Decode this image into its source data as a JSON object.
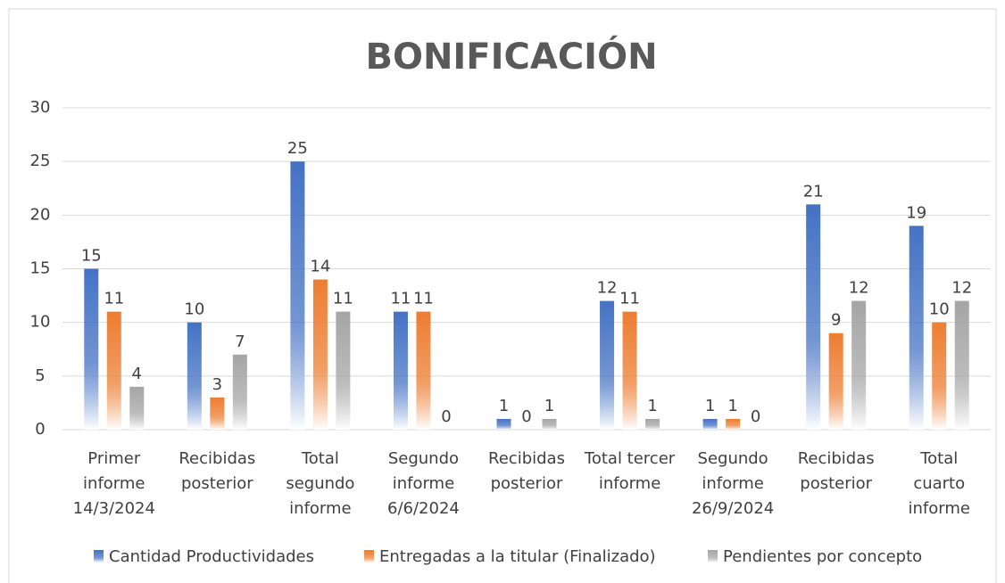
{
  "chart_data": {
    "type": "bar",
    "title": "BONIFICACIÓN",
    "categories": [
      "Primer\ninforme\n14/3/2024",
      "Recibidas\nposterior",
      "Total\nsegundo\ninforme",
      "Segundo\ninforme\n6/6/2024",
      "Recibidas\nposterior",
      "Total tercer\ninforme",
      "Segundo\ninforme\n26/9/2024",
      "Recibidas\nposterior",
      "Total\ncuarto\ninforme"
    ],
    "series": [
      {
        "name": "Cantidad Productividades",
        "color": "#4472c4",
        "values": [
          15,
          10,
          25,
          11,
          1,
          12,
          1,
          21,
          19
        ]
      },
      {
        "name": "Entregadas a la titular (Finalizado)",
        "color": "#ed7d31",
        "values": [
          11,
          3,
          14,
          11,
          0,
          11,
          1,
          9,
          10
        ]
      },
      {
        "name": "Pendientes por concepto",
        "color": "#a5a5a5",
        "values": [
          4,
          7,
          11,
          0,
          1,
          1,
          0,
          12,
          12
        ]
      }
    ],
    "ylim": [
      0,
      30
    ],
    "yticks": [
      0,
      5,
      10,
      15,
      20,
      25,
      30
    ],
    "grid": true,
    "legend": "bottom"
  }
}
